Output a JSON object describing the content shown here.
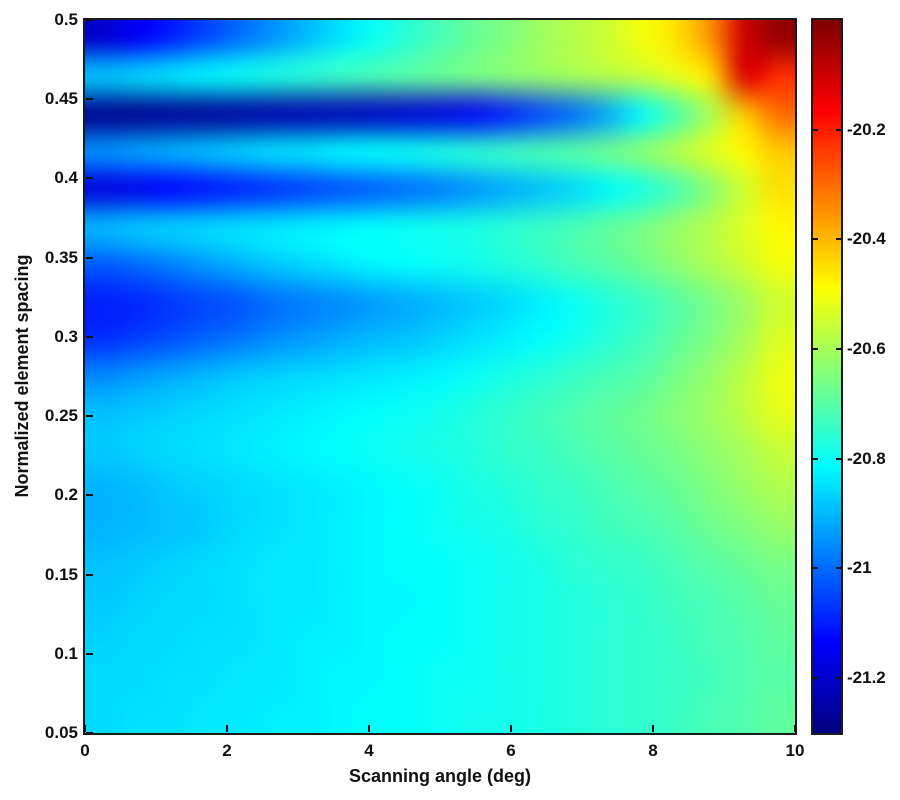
{
  "chart_data": {
    "type": "heatmap",
    "title": "",
    "xlabel": "Scanning angle (deg)",
    "ylabel": "Normalized element spacing",
    "xlim": [
      0,
      10
    ],
    "ylim": [
      0.05,
      0.5
    ],
    "clim": [
      -21.3,
      -20.0
    ],
    "colormap": "jet",
    "grid": false,
    "x": [
      0,
      0.5,
      1,
      1.5,
      2,
      2.5,
      3,
      3.5,
      4,
      4.5,
      5,
      5.5,
      6,
      6.5,
      7,
      7.5,
      8,
      8.5,
      9,
      9.5,
      10
    ],
    "y": [
      0.5,
      0.475,
      0.45,
      0.425,
      0.4,
      0.375,
      0.35,
      0.325,
      0.3,
      0.275,
      0.25,
      0.225,
      0.2,
      0.175,
      0.15,
      0.125,
      0.1,
      0.075,
      0.05
    ],
    "values": [
      [
        -21.2,
        -21.15,
        -21.1,
        -21.05,
        -21.0,
        -20.95,
        -20.9,
        -20.85,
        -20.8,
        -20.76,
        -20.72,
        -20.68,
        -20.65,
        -20.61,
        -20.58,
        -20.55,
        -20.5,
        -20.45,
        -20.35,
        -20.1,
        -20.03
      ],
      [
        -20.88,
        -20.86,
        -20.84,
        -20.82,
        -20.8,
        -20.78,
        -20.76,
        -20.74,
        -20.72,
        -20.7,
        -20.68,
        -20.66,
        -20.64,
        -20.62,
        -20.6,
        -20.58,
        -20.56,
        -20.52,
        -20.45,
        -20.12,
        -20.22
      ],
      [
        -21.28,
        -21.28,
        -21.27,
        -21.27,
        -21.26,
        -21.25,
        -21.24,
        -21.23,
        -21.22,
        -21.2,
        -21.18,
        -21.15,
        -21.1,
        -21.05,
        -21.0,
        -20.92,
        -20.82,
        -20.72,
        -20.6,
        -20.42,
        -20.3
      ],
      [
        -20.95,
        -20.93,
        -20.91,
        -20.89,
        -20.87,
        -20.85,
        -20.84,
        -20.82,
        -20.81,
        -20.8,
        -20.78,
        -20.76,
        -20.74,
        -20.72,
        -20.7,
        -20.67,
        -20.63,
        -20.58,
        -20.53,
        -20.48,
        -20.42
      ],
      [
        -21.18,
        -21.16,
        -21.14,
        -21.12,
        -21.1,
        -21.08,
        -21.06,
        -21.04,
        -21.02,
        -21.0,
        -20.98,
        -20.95,
        -20.92,
        -20.89,
        -20.86,
        -20.82,
        -20.78,
        -20.72,
        -20.64,
        -20.55,
        -20.45
      ],
      [
        -20.9,
        -20.88,
        -20.87,
        -20.86,
        -20.85,
        -20.84,
        -20.83,
        -20.82,
        -20.81,
        -20.8,
        -20.79,
        -20.78,
        -20.76,
        -20.74,
        -20.72,
        -20.69,
        -20.66,
        -20.62,
        -20.58,
        -20.53,
        -20.48
      ],
      [
        -21.02,
        -21.0,
        -20.97,
        -20.94,
        -20.91,
        -20.88,
        -20.86,
        -20.84,
        -20.82,
        -20.81,
        -20.8,
        -20.79,
        -20.77,
        -20.75,
        -20.72,
        -20.7,
        -20.67,
        -20.63,
        -20.59,
        -20.55,
        -20.5
      ],
      [
        -21.1,
        -21.09,
        -21.07,
        -21.05,
        -21.03,
        -21.0,
        -20.98,
        -20.96,
        -20.94,
        -20.92,
        -20.9,
        -20.88,
        -20.86,
        -20.83,
        -20.8,
        -20.77,
        -20.74,
        -20.7,
        -20.66,
        -20.61,
        -20.55
      ],
      [
        -21.08,
        -21.06,
        -21.04,
        -21.01,
        -20.99,
        -20.96,
        -20.94,
        -20.92,
        -20.9,
        -20.89,
        -20.87,
        -20.85,
        -20.83,
        -20.81,
        -20.79,
        -20.76,
        -20.73,
        -20.69,
        -20.65,
        -20.6,
        -20.53
      ],
      [
        -20.96,
        -20.94,
        -20.92,
        -20.9,
        -20.88,
        -20.87,
        -20.86,
        -20.85,
        -20.84,
        -20.83,
        -20.82,
        -20.8,
        -20.78,
        -20.76,
        -20.74,
        -20.72,
        -20.7,
        -20.66,
        -20.62,
        -20.57,
        -20.51
      ],
      [
        -20.89,
        -20.88,
        -20.87,
        -20.86,
        -20.85,
        -20.84,
        -20.83,
        -20.82,
        -20.81,
        -20.8,
        -20.79,
        -20.77,
        -20.75,
        -20.73,
        -20.71,
        -20.69,
        -20.67,
        -20.64,
        -20.61,
        -20.57,
        -20.52
      ],
      [
        -20.88,
        -20.87,
        -20.86,
        -20.85,
        -20.84,
        -20.83,
        -20.82,
        -20.81,
        -20.8,
        -20.79,
        -20.78,
        -20.77,
        -20.75,
        -20.74,
        -20.72,
        -20.7,
        -20.68,
        -20.66,
        -20.63,
        -20.6,
        -20.56
      ],
      [
        -20.91,
        -20.9,
        -20.88,
        -20.87,
        -20.86,
        -20.85,
        -20.84,
        -20.83,
        -20.82,
        -20.81,
        -20.8,
        -20.78,
        -20.77,
        -20.75,
        -20.74,
        -20.72,
        -20.7,
        -20.68,
        -20.65,
        -20.62,
        -20.59
      ],
      [
        -20.91,
        -20.9,
        -20.89,
        -20.88,
        -20.86,
        -20.85,
        -20.84,
        -20.83,
        -20.82,
        -20.81,
        -20.8,
        -20.79,
        -20.78,
        -20.76,
        -20.75,
        -20.73,
        -20.72,
        -20.7,
        -20.67,
        -20.65,
        -20.62
      ],
      [
        -20.89,
        -20.88,
        -20.87,
        -20.86,
        -20.85,
        -20.84,
        -20.84,
        -20.83,
        -20.82,
        -20.81,
        -20.81,
        -20.8,
        -20.79,
        -20.78,
        -20.76,
        -20.75,
        -20.74,
        -20.72,
        -20.7,
        -20.68,
        -20.66
      ],
      [
        -20.88,
        -20.87,
        -20.86,
        -20.86,
        -20.85,
        -20.84,
        -20.84,
        -20.83,
        -20.82,
        -20.82,
        -20.81,
        -20.8,
        -20.79,
        -20.78,
        -20.77,
        -20.76,
        -20.75,
        -20.73,
        -20.72,
        -20.7,
        -20.68
      ],
      [
        -20.87,
        -20.86,
        -20.86,
        -20.85,
        -20.85,
        -20.84,
        -20.83,
        -20.83,
        -20.82,
        -20.81,
        -20.81,
        -20.8,
        -20.79,
        -20.78,
        -20.77,
        -20.76,
        -20.75,
        -20.74,
        -20.72,
        -20.71,
        -20.69
      ],
      [
        -20.86,
        -20.86,
        -20.85,
        -20.85,
        -20.84,
        -20.84,
        -20.83,
        -20.82,
        -20.82,
        -20.81,
        -20.8,
        -20.8,
        -20.79,
        -20.78,
        -20.77,
        -20.76,
        -20.75,
        -20.74,
        -20.73,
        -20.71,
        -20.7
      ],
      [
        -20.86,
        -20.85,
        -20.85,
        -20.84,
        -20.84,
        -20.83,
        -20.83,
        -20.82,
        -20.81,
        -20.81,
        -20.8,
        -20.79,
        -20.79,
        -20.78,
        -20.77,
        -20.76,
        -20.75,
        -20.74,
        -20.72,
        -20.71,
        -20.69
      ]
    ],
    "x_ticks": {
      "values": [
        0,
        2,
        4,
        6,
        8,
        10
      ],
      "labels": [
        "0",
        "2",
        "4",
        "6",
        "8",
        "10"
      ]
    },
    "y_ticks": {
      "values": [
        0.5,
        0.45,
        0.4,
        0.35,
        0.3,
        0.25,
        0.2,
        0.15,
        0.1,
        0.05
      ],
      "labels": [
        "0.5",
        "0.45",
        "0.4",
        "0.35",
        "0.3",
        "0.25",
        "0.2",
        "0.15",
        "0.1",
        "0.05"
      ]
    },
    "colorbar_ticks": {
      "values": [
        -20.2,
        -20.4,
        -20.6,
        -20.8,
        -21,
        -21.2
      ],
      "labels": [
        "-20.2",
        "-20.4",
        "-20.6",
        "-20.8",
        "-21",
        "-21.2"
      ]
    },
    "legend": "none"
  },
  "colors": {
    "background": "#ffffff",
    "axis_border": "#1b1b1b",
    "label_text": "#111111",
    "colorbar_top": "#7f0000",
    "colorbar_bottom": "#000080"
  }
}
